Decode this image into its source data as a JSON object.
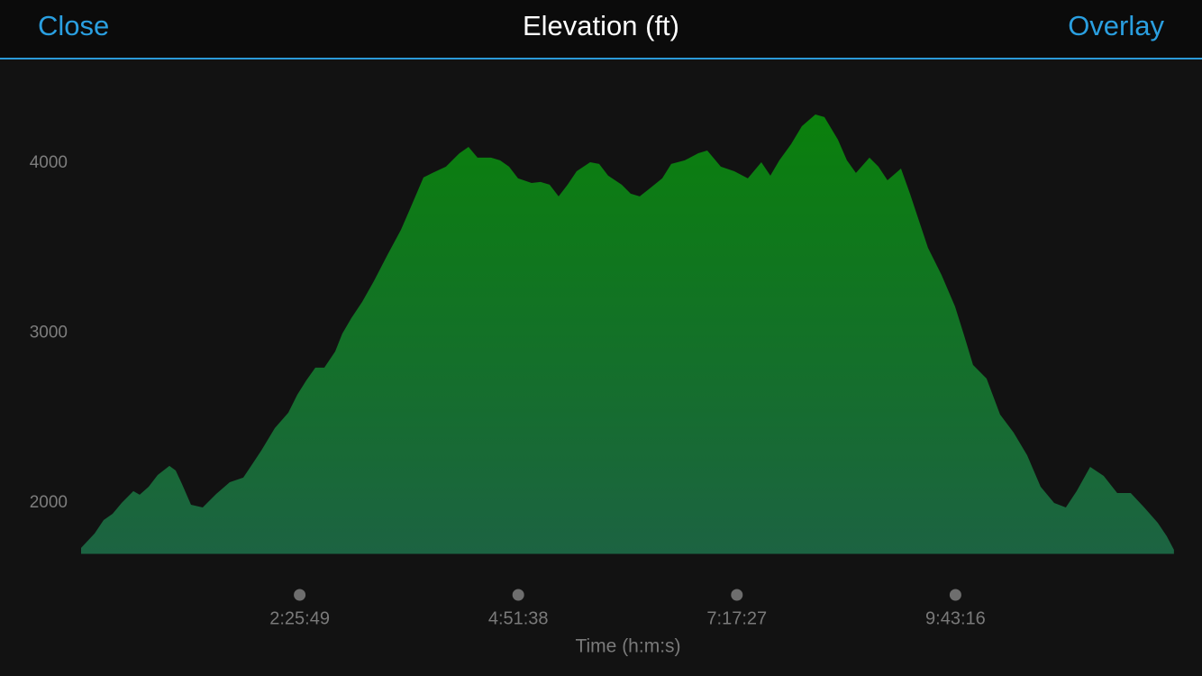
{
  "header": {
    "left_button": "Close",
    "title": "Elevation (ft)",
    "right_button": "Overlay"
  },
  "chart_data": {
    "type": "area",
    "x_label": "Time (h:m:s)",
    "x": [
      0,
      541,
      902,
      1262,
      1623,
      2092,
      2344,
      2705,
      3065,
      3534,
      3786,
      4038,
      4399,
      4868,
      5409,
      5950,
      6491,
      6851,
      7212,
      7753,
      8294,
      8654,
      9015,
      9376,
      9736,
      10169,
      10457,
      10818,
      11251,
      11719,
      12260,
      12801,
      13162,
      13703,
      14063,
      14604,
      15145,
      15506,
      15866,
      16407,
      16768,
      17128,
      17489,
      18030,
      18391,
      18751,
      19112,
      19472,
      19833,
      20374,
      20735,
      21095,
      21636,
      21997,
      22357,
      22718,
      23259,
      23620,
      24161,
      24702,
      25062,
      25603,
      26144,
      26685,
      27226,
      27587,
      27947,
      28415,
      28848,
      29389,
      29750,
      30290,
      30651,
      31012,
      31553,
      31913,
      32274,
      32815,
      33175,
      33536,
      33897,
      34437,
      34978,
      35339,
      35699,
      36240,
      36781,
      37322,
      37863,
      38404,
      38945,
      39413,
      39846,
      40387,
      40928,
      41469,
      42010,
      42551,
      43091,
      43452,
      43740
    ],
    "values": [
      1735,
      1820,
      1899,
      1936,
      2000,
      2069,
      2048,
      2095,
      2164,
      2218,
      2191,
      2111,
      1989,
      1973,
      2053,
      2122,
      2149,
      2228,
      2308,
      2440,
      2531,
      2637,
      2721,
      2796,
      2796,
      2891,
      2997,
      3088,
      3183,
      3305,
      3459,
      3607,
      3729,
      3915,
      3942,
      3979,
      4058,
      4095,
      4032,
      4032,
      4016,
      3979,
      3910,
      3883,
      3889,
      3873,
      3804,
      3873,
      3952,
      4005,
      3995,
      3926,
      3873,
      3820,
      3804,
      3846,
      3910,
      3995,
      4016,
      4058,
      4074,
      3979,
      3952,
      3910,
      4005,
      3926,
      4016,
      4111,
      4217,
      4286,
      4271,
      4138,
      4016,
      3942,
      4032,
      3979,
      3899,
      3968,
      3820,
      3660,
      3501,
      3342,
      3156,
      2987,
      2812,
      2732,
      2520,
      2414,
      2281,
      2095,
      2000,
      1973,
      2069,
      2212,
      2159,
      2058,
      2058,
      1973,
      1883,
      1804,
      1724
    ],
    "color_top": "#0a800c",
    "color_bottom": "#1c6342",
    "xlim": [
      0,
      43745
    ],
    "xticks": [
      {
        "value": 8749,
        "label": "2:25:49"
      },
      {
        "value": 17498,
        "label": "4:51:38"
      },
      {
        "value": 26247,
        "label": "7:17:27"
      },
      {
        "value": 34996,
        "label": "9:43:16"
      }
    ],
    "ylim": [
      1700,
      4600
    ],
    "yticks": [
      2000,
      3000,
      4000
    ]
  }
}
